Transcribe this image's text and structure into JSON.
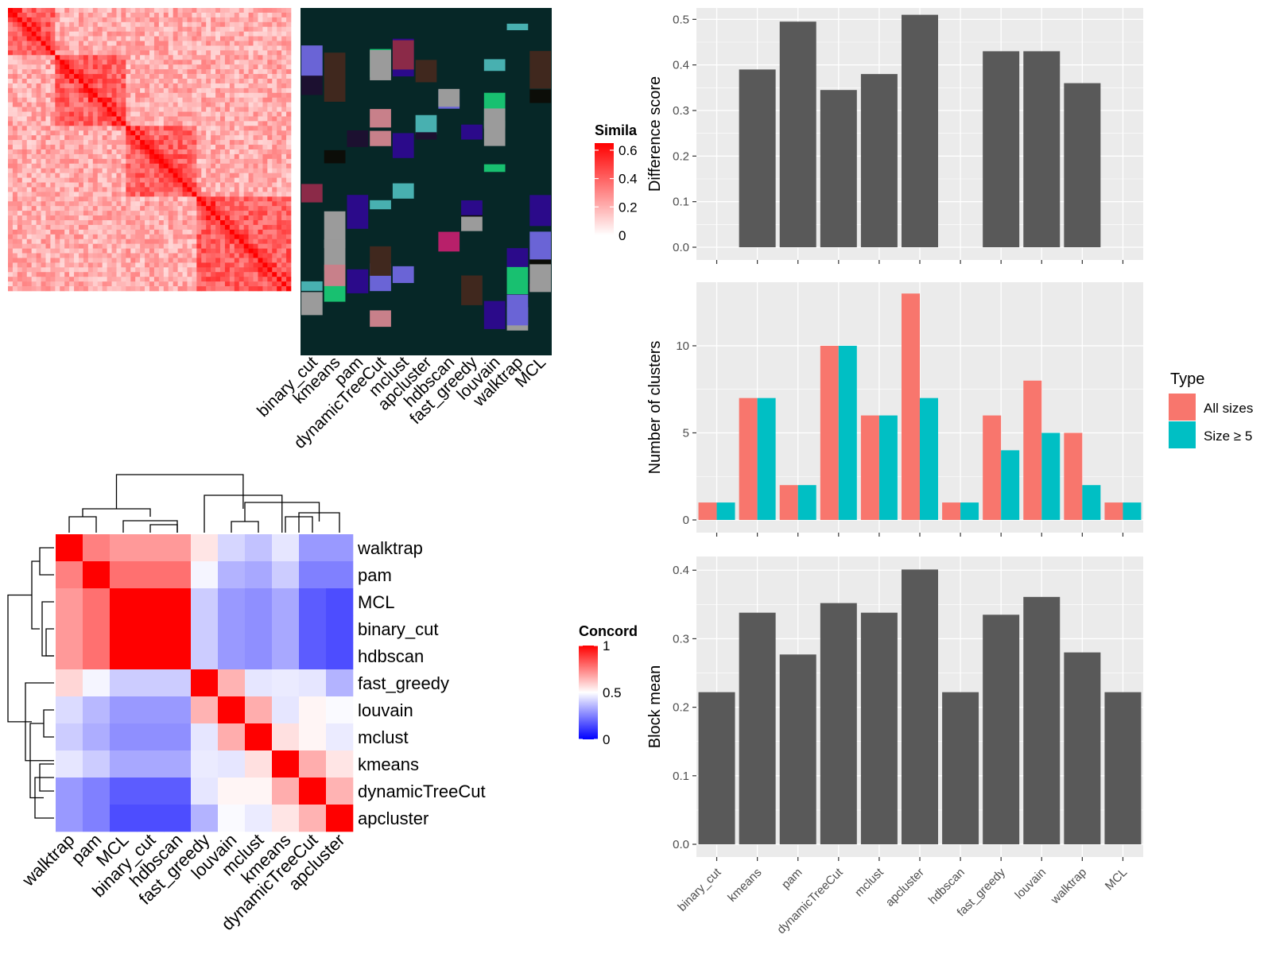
{
  "colors": {
    "panel_bg": "#ebebeb",
    "grid": "#ffffff",
    "bar": "#595959",
    "all_sizes": "#f8766d",
    "size_ge5": "#00bfc4",
    "similarity_high": "#ff0000",
    "concordance_high": "#ff0000",
    "concordance_mid": "#ffffff",
    "concordance_low": "#0000ff",
    "assignment_bg": "#062727"
  },
  "chart_data": [
    {
      "id": "similarity_heatmap",
      "type": "heatmap",
      "legend": {
        "title": "Similarity",
        "visible_title": "Simila",
        "ticks": [
          "0",
          "0.2",
          "0.4",
          "0.6"
        ],
        "range": [
          0,
          0.65
        ]
      },
      "grid_size": 60,
      "assignment_columns": [
        "binary_cut",
        "kmeans",
        "pam",
        "dynamicTreeCut",
        "mclust",
        "apcluster",
        "hdbscan",
        "fast_greedy",
        "louvain",
        "walktrap",
        "MCL"
      ]
    },
    {
      "id": "concordance_heatmap",
      "type": "heatmap",
      "legend": {
        "title": "Concordance",
        "visible_title": "Concord",
        "ticks": [
          "0",
          "0.5",
          "1"
        ],
        "range": [
          0,
          1
        ]
      },
      "row_labels": [
        "walktrap",
        "pam",
        "MCL",
        "binary_cut",
        "hdbscan",
        "fast_greedy",
        "louvain",
        "mclust",
        "kmeans",
        "dynamicTreeCut",
        "apcluster"
      ],
      "col_labels": [
        "walktrap",
        "pam",
        "MCL",
        "binary_cut",
        "hdbscan",
        "fast_greedy",
        "louvain",
        "mclust",
        "kmeans",
        "dynamicTreeCut",
        "apcluster"
      ],
      "values": [
        [
          1.0,
          0.75,
          0.7,
          0.7,
          0.7,
          0.55,
          0.42,
          0.38,
          0.45,
          0.3,
          0.3
        ],
        [
          0.75,
          1.0,
          0.78,
          0.78,
          0.78,
          0.48,
          0.35,
          0.33,
          0.4,
          0.25,
          0.25
        ],
        [
          0.7,
          0.78,
          1.0,
          1.0,
          1.0,
          0.4,
          0.3,
          0.28,
          0.33,
          0.18,
          0.15
        ],
        [
          0.7,
          0.78,
          1.0,
          1.0,
          1.0,
          0.4,
          0.3,
          0.28,
          0.33,
          0.18,
          0.15
        ],
        [
          0.7,
          0.78,
          1.0,
          1.0,
          1.0,
          0.4,
          0.3,
          0.28,
          0.33,
          0.18,
          0.15
        ],
        [
          0.58,
          0.48,
          0.4,
          0.4,
          0.4,
          1.0,
          0.65,
          0.45,
          0.46,
          0.45,
          0.35
        ],
        [
          0.43,
          0.36,
          0.3,
          0.3,
          0.3,
          0.65,
          1.0,
          0.66,
          0.45,
          0.52,
          0.49
        ],
        [
          0.4,
          0.34,
          0.28,
          0.28,
          0.28,
          0.45,
          0.66,
          1.0,
          0.56,
          0.52,
          0.46
        ],
        [
          0.45,
          0.4,
          0.33,
          0.33,
          0.33,
          0.46,
          0.45,
          0.56,
          1.0,
          0.66,
          0.55
        ],
        [
          0.3,
          0.25,
          0.18,
          0.18,
          0.18,
          0.45,
          0.52,
          0.52,
          0.66,
          1.0,
          0.65
        ],
        [
          0.3,
          0.25,
          0.15,
          0.15,
          0.15,
          0.35,
          0.49,
          0.46,
          0.55,
          0.65,
          1.0
        ]
      ]
    },
    {
      "id": "difference_score",
      "type": "bar",
      "categories": [
        "binary_cut",
        "kmeans",
        "pam",
        "dynamicTreeCut",
        "mclust",
        "apcluster",
        "hdbscan",
        "fast_greedy",
        "louvain",
        "walktrap",
        "MCL"
      ],
      "values": [
        0,
        0.39,
        0.495,
        0.345,
        0.38,
        0.51,
        0,
        0.43,
        0.43,
        0.36,
        0
      ],
      "ylabel": "Difference score",
      "ylim": [
        0,
        0.525
      ],
      "yticks": [
        0.0,
        0.1,
        0.2,
        0.3,
        0.4,
        0.5
      ],
      "ytick_labels": [
        "0.0",
        "0.1",
        "0.2",
        "0.3",
        "0.4",
        "0.5"
      ]
    },
    {
      "id": "number_of_clusters",
      "type": "bar",
      "categories": [
        "binary_cut",
        "kmeans",
        "pam",
        "dynamicTreeCut",
        "mclust",
        "apcluster",
        "hdbscan",
        "fast_greedy",
        "louvain",
        "walktrap",
        "MCL"
      ],
      "series": [
        {
          "name": "All sizes",
          "values": [
            1,
            7,
            2,
            10,
            6,
            13,
            1,
            6,
            8,
            5,
            1
          ]
        },
        {
          "name": "Size ≥ 5",
          "values": [
            1,
            7,
            2,
            10,
            6,
            7,
            1,
            4,
            5,
            2,
            1
          ]
        }
      ],
      "ylabel": "Number of clusters",
      "ylim": [
        0,
        13.65
      ],
      "yticks": [
        0,
        5,
        10
      ],
      "ytick_labels": [
        "0",
        "5",
        "10"
      ],
      "legend_title": "Type",
      "legend_position": "right"
    },
    {
      "id": "block_mean",
      "type": "bar",
      "categories": [
        "binary_cut",
        "kmeans",
        "pam",
        "dynamicTreeCut",
        "mclust",
        "apcluster",
        "hdbscan",
        "fast_greedy",
        "louvain",
        "walktrap",
        "MCL"
      ],
      "values": [
        0.222,
        0.338,
        0.277,
        0.352,
        0.338,
        0.401,
        0.222,
        0.335,
        0.361,
        0.28,
        0.222
      ],
      "ylabel": "Block mean",
      "ylim": [
        0,
        0.42
      ],
      "yticks": [
        0.0,
        0.1,
        0.2,
        0.3,
        0.4
      ],
      "ytick_labels": [
        "0.0",
        "0.1",
        "0.2",
        "0.3",
        "0.4"
      ]
    }
  ]
}
